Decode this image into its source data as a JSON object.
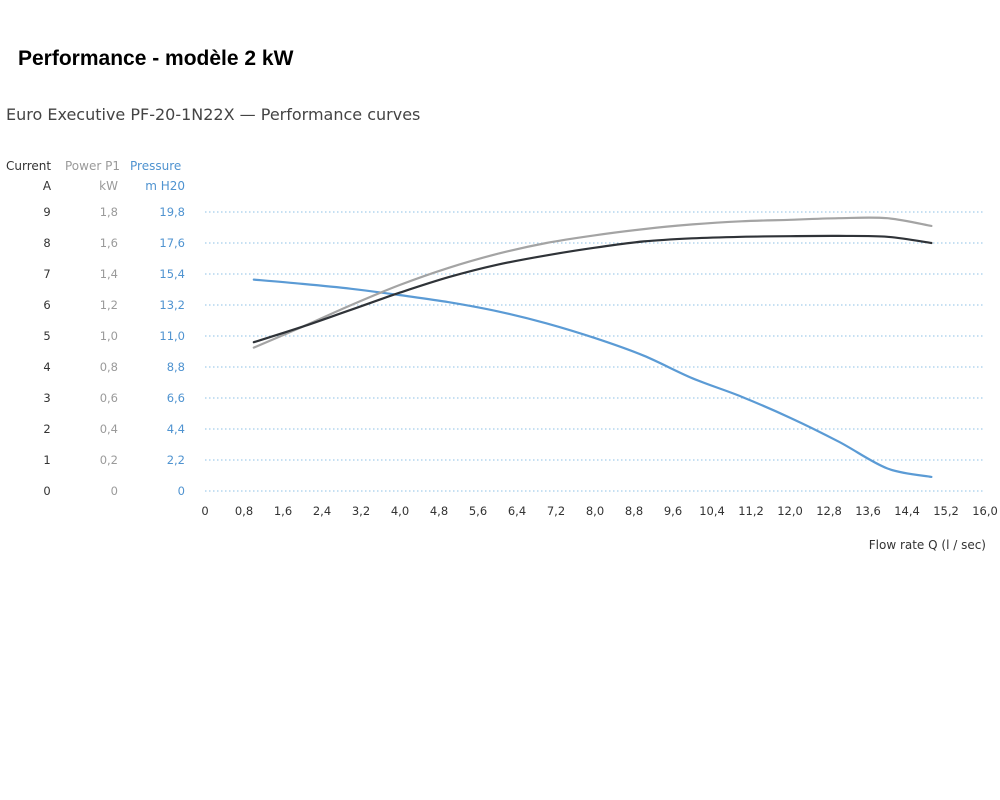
{
  "page_title": "Performance - modèle 2 kW",
  "colors": {
    "pressure": "#5b9bd5",
    "power": "#a4a4a4",
    "current": "#2f3338",
    "grid": "#8cc0e6",
    "current_axis_text": "#333333",
    "power_axis_text": "#9a9a9a",
    "pressure_axis_text": "#4f93d0"
  },
  "chart_data": {
    "type": "line",
    "title": "Euro Executive PF-20-1N22X — Performance curves",
    "xlabel": "Flow rate Q  (l / sec)",
    "xlim": [
      0,
      16
    ],
    "x_ticks": [
      "0",
      "0,8",
      "1,6",
      "2,4",
      "3,2",
      "4,0",
      "4,8",
      "5,6",
      "6,4",
      "7,2",
      "8,0",
      "8,8",
      "9,6",
      "10,4",
      "11,2",
      "12,0",
      "12,8",
      "13,6",
      "14,4",
      "15,2",
      "16,0"
    ],
    "grid": true,
    "y_axes": [
      {
        "id": "current",
        "name": "Current",
        "unit": "A",
        "range": [
          0,
          9
        ],
        "ticks": [
          "0",
          "1",
          "2",
          "3",
          "4",
          "5",
          "6",
          "7",
          "8",
          "9"
        ]
      },
      {
        "id": "power",
        "name": "Power P1",
        "unit": "kW",
        "range": [
          0,
          1.8
        ],
        "ticks": [
          "0",
          "0,2",
          "0,4",
          "0,6",
          "0,8",
          "1,0",
          "1,2",
          "1,4",
          "1,6",
          "1,8"
        ]
      },
      {
        "id": "pressure",
        "name": "Pressure",
        "unit": "m H20",
        "range": [
          0,
          19.8
        ],
        "ticks": [
          "0",
          "2,2",
          "4,4",
          "6,6",
          "8,8",
          "11,0",
          "13,2",
          "15,4",
          "17,6",
          "19,8"
        ]
      }
    ],
    "series": [
      {
        "axis": "pressure",
        "color": "#5b9bd5",
        "x": [
          1.0,
          2.0,
          3.0,
          4.0,
          5.0,
          6.0,
          7.0,
          8.0,
          9.0,
          10.0,
          11.0,
          12.0,
          13.0,
          14.0,
          14.9
        ],
        "y": [
          15.0,
          14.7,
          14.35,
          13.9,
          13.4,
          12.75,
          11.9,
          10.85,
          9.6,
          8.0,
          6.7,
          5.2,
          3.5,
          1.6,
          1.0
        ]
      },
      {
        "axis": "power",
        "color": "#a4a4a4",
        "x": [
          1.0,
          2.0,
          3.0,
          4.0,
          5.0,
          6.0,
          7.0,
          8.0,
          9.0,
          10.0,
          11.0,
          12.0,
          13.0,
          14.0,
          14.9
        ],
        "y": [
          0.925,
          1.06,
          1.2,
          1.33,
          1.44,
          1.53,
          1.6,
          1.65,
          1.69,
          1.72,
          1.74,
          1.75,
          1.76,
          1.76,
          1.71
        ]
      },
      {
        "axis": "current",
        "color": "#2f3338",
        "x": [
          1.0,
          2.0,
          3.0,
          4.0,
          5.0,
          6.0,
          7.0,
          8.0,
          9.0,
          10.0,
          11.0,
          12.0,
          13.0,
          14.0,
          14.9
        ],
        "y": [
          4.8,
          5.3,
          5.85,
          6.4,
          6.9,
          7.3,
          7.6,
          7.85,
          8.05,
          8.15,
          8.2,
          8.22,
          8.23,
          8.2,
          8.0
        ]
      }
    ]
  }
}
